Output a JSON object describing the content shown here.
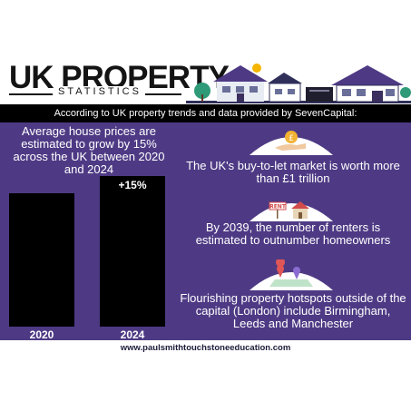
{
  "header": {
    "title": "UK PROPERTY",
    "subtitle": "STATISTICS",
    "intro": "According to UK property trends and data provided by SevenCapital:"
  },
  "left": {
    "text": "Average house prices are estimated to grow by 15% across the UK between 2020 and 2024"
  },
  "chart_data": {
    "type": "bar",
    "categories": [
      "2020",
      "2024"
    ],
    "annotations": [
      "+15%"
    ]
  },
  "facts": [
    {
      "icon": "pound-coin-hand-icon",
      "text": "The UK's buy-to-let market is worth more than £1 trillion"
    },
    {
      "icon": "rent-sign-house-icon",
      "text": "By 2039, the number of renters is estimated to outnumber homeowners"
    },
    {
      "icon": "map-pins-icon",
      "text": "Flourishing property hotspots outside of the capital (London) include Birmingham, Leeds and Manchester"
    }
  ],
  "rent_sign": "RENT",
  "footer": "www.paulsmithtouchstoneeducation.com",
  "colors": {
    "purple": "#4e3a84",
    "black": "#000000",
    "white": "#ffffff"
  }
}
